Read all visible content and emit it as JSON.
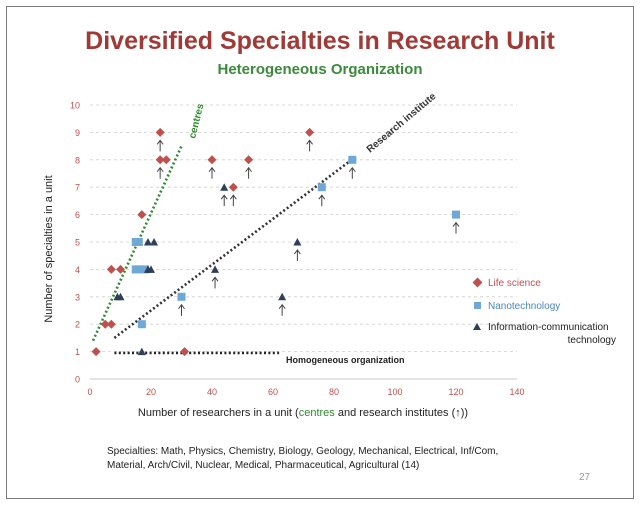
{
  "slide": {
    "title": "Diversified Specialties in Research Unit",
    "subtitle": "Heterogeneous Organization",
    "footnote_line1": "Specialties: Math, Physics, Chemistry, Biology, Geology, Mechanical, Electrical,  Inf/Com,",
    "footnote_line2": "Material, Arch/Civil, Nuclear, Medical, Pharmaceutical, Agricultural  (14)",
    "page_number": "27"
  },
  "chart_data": {
    "type": "scatter",
    "xlabel_parts": [
      "Number of researchers in a unit (",
      "centres",
      " and research institutes (",
      "↑",
      "))"
    ],
    "ylabel": "Number of specialties in a unit",
    "xlim": [
      0,
      140
    ],
    "ylim": [
      0,
      10
    ],
    "xticks": [
      0,
      20,
      40,
      60,
      80,
      100,
      120,
      140
    ],
    "yticks": [
      0,
      1,
      2,
      3,
      4,
      5,
      6,
      7,
      8,
      9,
      10
    ],
    "grid": "horizontal-dashed",
    "legend_position": "right",
    "series": [
      {
        "name": "Life science",
        "marker": "diamond",
        "color": "#c0504d",
        "points": [
          [
            2,
            1
          ],
          [
            5,
            2
          ],
          [
            7,
            2
          ],
          [
            7,
            4
          ],
          [
            10,
            4
          ],
          [
            17,
            6
          ],
          [
            23,
            8
          ],
          [
            25,
            8
          ],
          [
            23,
            9
          ],
          [
            31,
            1
          ],
          [
            40,
            8
          ],
          [
            47,
            7
          ],
          [
            52,
            8
          ],
          [
            72,
            9
          ]
        ]
      },
      {
        "name": "Nanotechnology",
        "marker": "square",
        "color": "#6fa8d6",
        "points": [
          [
            15,
            5
          ],
          [
            16,
            5
          ],
          [
            15,
            4
          ],
          [
            16,
            4
          ],
          [
            18,
            4
          ],
          [
            17,
            2
          ],
          [
            30,
            3
          ],
          [
            76,
            7
          ],
          [
            86,
            8
          ],
          [
            120,
            6
          ]
        ]
      },
      {
        "name": "Information-communication technology",
        "marker": "triangle",
        "color": "#2f3f5a",
        "points": [
          [
            9,
            3
          ],
          [
            10,
            3
          ],
          [
            17,
            1
          ],
          [
            19,
            5
          ],
          [
            21,
            5
          ],
          [
            19,
            4
          ],
          [
            20,
            4
          ],
          [
            41,
            4
          ],
          [
            44,
            7
          ],
          [
            63,
            3
          ],
          [
            68,
            5
          ]
        ]
      }
    ],
    "arrow_markers": {
      "color": "#444444",
      "points": [
        [
          23,
          8.6
        ],
        [
          23,
          7.6
        ],
        [
          40,
          7.6
        ],
        [
          44,
          6.6
        ],
        [
          47,
          6.6
        ],
        [
          52,
          7.6
        ],
        [
          72,
          8.6
        ],
        [
          76,
          6.6
        ],
        [
          86,
          7.6
        ],
        [
          120,
          5.6
        ],
        [
          30,
          2.6
        ],
        [
          41,
          3.6
        ],
        [
          63,
          2.6
        ],
        [
          68,
          4.6
        ]
      ]
    },
    "trend_lines": [
      {
        "label": "centres",
        "color": "#2e8b2e",
        "x": [
          1,
          30
        ],
        "y": [
          1.4,
          8.5
        ]
      },
      {
        "label": "Research institute",
        "color": "#333333",
        "x": [
          8,
          87
        ],
        "y": [
          1.5,
          8.1
        ]
      },
      {
        "label": "Homogeneous organization",
        "color": "#222222",
        "x": [
          8,
          62
        ],
        "y": [
          0.95,
          0.95
        ]
      }
    ]
  }
}
